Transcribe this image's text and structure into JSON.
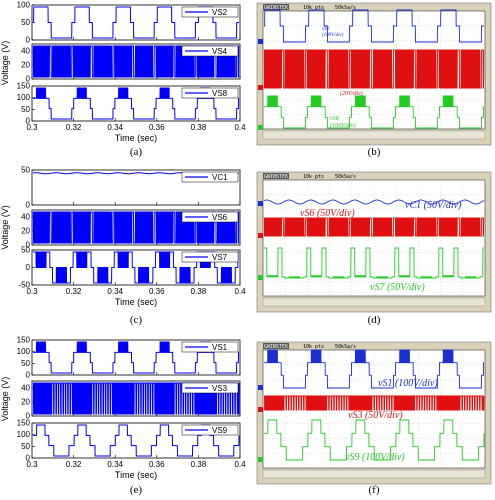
{
  "colors": {
    "simulation": "#0000ff",
    "ch1": "#1a2fd0",
    "ch2": "#e01010",
    "ch3": "#22cc22",
    "scope_bg": "#ffffff",
    "scope_frame": "#d9d2b8"
  },
  "panel_labels": [
    "(a)",
    "(b)",
    "(c)",
    "(d)",
    "(e)",
    "(f)"
  ],
  "scope": {
    "brand": "GWINSTEK",
    "sample_label": "10k pts",
    "rate_label": "50kSa/s"
  },
  "chart_data": [
    {
      "type": "line",
      "panel": "(a)",
      "xlabel": "Time (sec)",
      "ylabel": "Voltage (V)",
      "xlim": [
        0.3,
        0.4
      ],
      "xticks": [
        "0.3",
        "0.32",
        "0.34",
        "0.36",
        "0.38",
        "0.4"
      ],
      "subplots": [
        {
          "legend": "VS2",
          "ylim": [
            0,
            100
          ],
          "yticks": [
            "0",
            "50",
            "100"
          ],
          "waveform": "staircase_3_level",
          "levels": [
            0,
            50,
            100
          ],
          "period": 0.02
        },
        {
          "legend": "VS4",
          "ylim": [
            0,
            50
          ],
          "yticks": [
            "0",
            "20",
            "40"
          ],
          "waveform": "pwm_bursts",
          "level": 50,
          "period": 0.02
        },
        {
          "legend": "VS8",
          "ylim": [
            0,
            150
          ],
          "yticks": [
            "0",
            "50",
            "100",
            "150"
          ],
          "waveform": "staircase_top_pwm",
          "levels": [
            0,
            50,
            100,
            150
          ],
          "period": 0.02
        }
      ]
    },
    {
      "type": "line",
      "panel": "(c)",
      "xlabel": "Time (sec)",
      "ylabel": "Voltage (V)",
      "xlim": [
        0.3,
        0.4
      ],
      "xticks": [
        "0.3",
        "0.32",
        "0.34",
        "0.36",
        "0.38",
        "0.4"
      ],
      "subplots": [
        {
          "legend": "VC1",
          "ylim": [
            0,
            50
          ],
          "yticks": [
            "0",
            "50"
          ],
          "waveform": "dc",
          "level": 48
        },
        {
          "legend": "VS6",
          "ylim": [
            0,
            50
          ],
          "yticks": [
            "0",
            "20",
            "40"
          ],
          "waveform": "pwm_bursts",
          "level": 50,
          "period": 0.02
        },
        {
          "legend": "VS7",
          "ylim": [
            -50,
            50
          ],
          "yticks": [
            "-50",
            "0",
            "50"
          ],
          "waveform": "bipolar_steps",
          "levels": [
            -50,
            0,
            50
          ],
          "period": 0.02
        }
      ]
    },
    {
      "type": "line",
      "panel": "(e)",
      "xlabel": "Time (sec)",
      "ylabel": "Voltage (V)",
      "xlim": [
        0.3,
        0.4
      ],
      "xticks": [
        "0.3",
        "0.32",
        "0.34",
        "0.36",
        "0.38",
        "0.4"
      ],
      "subplots": [
        {
          "legend": "VS1",
          "ylim": [
            0,
            150
          ],
          "yticks": [
            "0",
            "50",
            "100",
            "150"
          ],
          "waveform": "staircase_top_pwm",
          "levels": [
            0,
            50,
            100,
            150
          ],
          "period": 0.02
        },
        {
          "legend": "VS3",
          "ylim": [
            0,
            50
          ],
          "yticks": [
            "0",
            "20",
            "40"
          ],
          "waveform": "pwm_dense",
          "level": 50,
          "period": 0.02
        },
        {
          "legend": "VS9",
          "ylim": [
            0,
            150
          ],
          "yticks": [
            "0",
            "50",
            "100",
            "150"
          ],
          "waveform": "staircase_4_level",
          "levels": [
            0,
            50,
            100,
            150
          ],
          "period": 0.02
        }
      ]
    },
    {
      "type": "line",
      "panel": "(b)",
      "instrument": "oscilloscope",
      "traces": [
        {
          "name": "vS2 (100V/div)",
          "color": "#1a2fd0",
          "waveform": "staircase_3_level"
        },
        {
          "name": "vS4 (20V/div)",
          "color": "#e01010",
          "waveform": "pwm_bursts"
        },
        {
          "name": "vS8 (100V/div)",
          "color": "#22cc22",
          "waveform": "staircase_top_pwm"
        }
      ]
    },
    {
      "type": "line",
      "panel": "(d)",
      "instrument": "oscilloscope",
      "traces": [
        {
          "name": "vC1 (50V/div)",
          "color": "#1a2fd0",
          "waveform": "dc"
        },
        {
          "name": "vS6 (50V/div)",
          "color": "#e01010",
          "waveform": "pwm_bursts"
        },
        {
          "name": "vS7 (50V/div)",
          "color": "#22cc22",
          "waveform": "bipolar_steps"
        }
      ]
    },
    {
      "type": "line",
      "panel": "(f)",
      "instrument": "oscilloscope",
      "traces": [
        {
          "name": "vS1 (100V/div)",
          "color": "#1a2fd0",
          "waveform": "staircase_top_pwm"
        },
        {
          "name": "vS3 (50V/div)",
          "color": "#e01010",
          "waveform": "pwm_dense"
        },
        {
          "name": "vS9 (100V/div)",
          "color": "#22cc22",
          "waveform": "staircase_4_level"
        }
      ]
    }
  ]
}
